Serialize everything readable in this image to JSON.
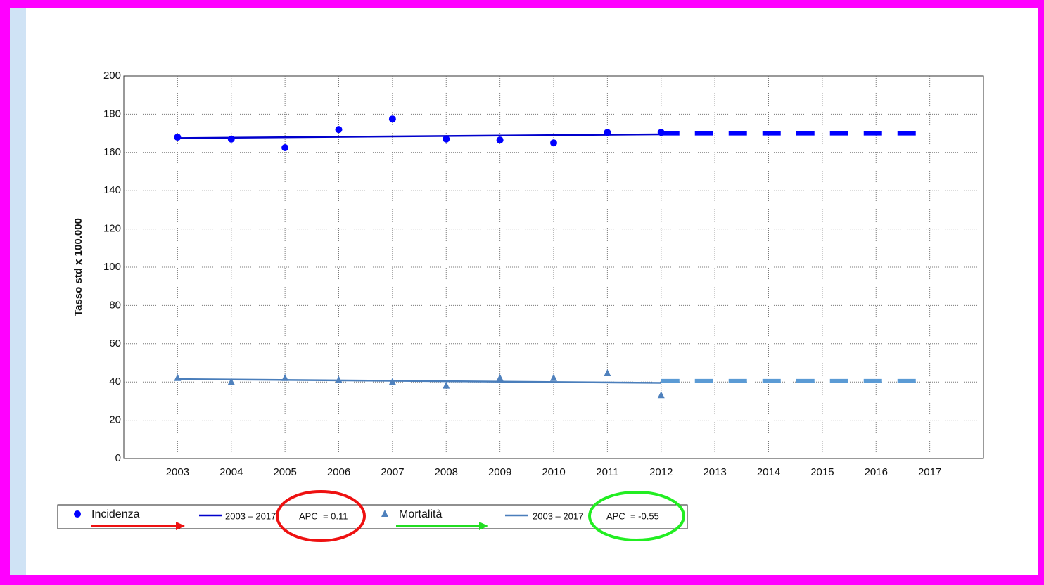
{
  "chart_data": {
    "type": "scatter",
    "ylabel": "Tasso std x 100.000",
    "x": [
      2003,
      2004,
      2005,
      2006,
      2007,
      2008,
      2009,
      2010,
      2011,
      2012
    ],
    "xlim": [
      2002,
      2018
    ],
    "xticks": [
      2003,
      2004,
      2005,
      2006,
      2007,
      2008,
      2009,
      2010,
      2011,
      2012,
      2013,
      2014,
      2015,
      2016,
      2017
    ],
    "ylim": [
      0,
      200
    ],
    "yticks": [
      0,
      20,
      40,
      60,
      80,
      100,
      120,
      140,
      160,
      180,
      200
    ],
    "grid": true,
    "series": [
      {
        "name": "Incidenza",
        "color": "#0000ff",
        "marker": "circle",
        "values": [
          168,
          167,
          162.5,
          172,
          177.5,
          167,
          166.5,
          165,
          170.5,
          170.5
        ]
      },
      {
        "name": "Mortalità",
        "color": "#4f81bd",
        "marker": "triangle",
        "values": [
          42,
          40,
          42,
          41,
          40,
          38,
          42,
          42,
          44.5,
          33
        ]
      }
    ],
    "trends": [
      {
        "name": "2003 – 2017",
        "annotation": "APC  = 0.11",
        "color": "#0000cc",
        "projection_color": "#0000ff",
        "x": [
          2003,
          2012
        ],
        "values": [
          167.5,
          169.5
        ],
        "projection_x": [
          2012,
          2017
        ],
        "projection_values": [
          170,
          170
        ]
      },
      {
        "name": "2003 – 2017",
        "annotation": "APC  = -0.55",
        "color": "#4a7ebb",
        "projection_color": "#5b9bd5",
        "x": [
          2003,
          2012
        ],
        "values": [
          41.5,
          39.5
        ],
        "projection_x": [
          2012,
          2017
        ],
        "projection_values": [
          40.5,
          40.5
        ]
      }
    ]
  }
}
